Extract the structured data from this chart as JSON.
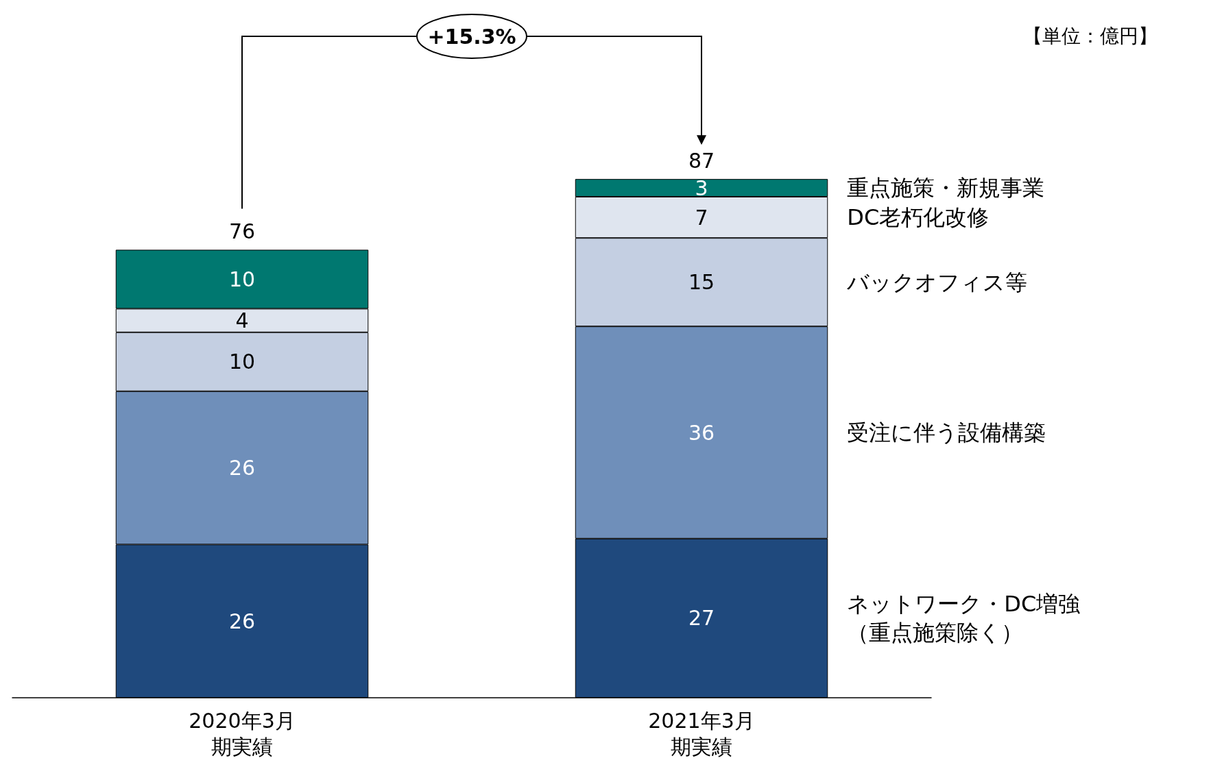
{
  "chart_data": {
    "type": "bar",
    "stacked": true,
    "categories": [
      "2020年3月期実績",
      "2021年3月期実績"
    ],
    "series": [
      {
        "name": "ネットワーク・DC増強（重点施策除く）",
        "color": "#1f497d",
        "values": [
          26,
          27
        ]
      },
      {
        "name": "受注に伴う設備構築",
        "color": "#6f8fba",
        "values": [
          26,
          36
        ]
      },
      {
        "name": "バックオフィス等",
        "color": "#c4cfe2",
        "values": [
          10,
          15
        ]
      },
      {
        "name": "DC老朽化改修",
        "color": "#dfe5ef",
        "values": [
          4,
          7
        ]
      },
      {
        "name": "重点施策・新規事業",
        "color": "#007870",
        "values": [
          10,
          3
        ]
      }
    ],
    "data_labels": true,
    "totals": [
      "76",
      "87"
    ],
    "legend": false,
    "grid": false,
    "annotations": [
      "+15.3%",
      "【単位：億円】"
    ]
  }
}
